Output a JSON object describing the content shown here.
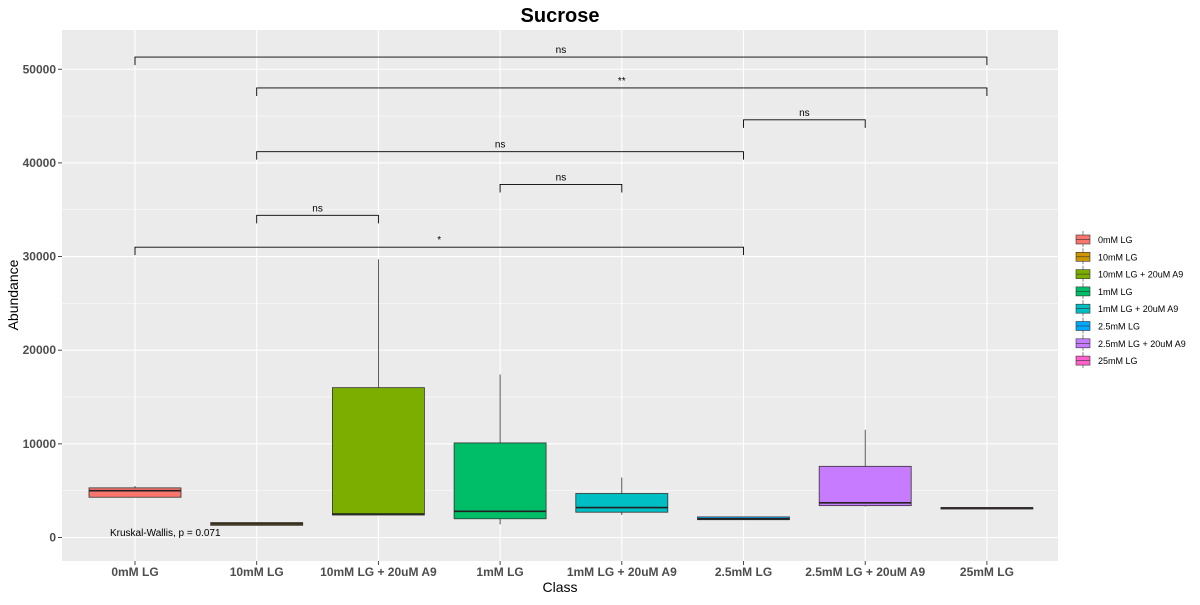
{
  "chart_data": {
    "type": "box",
    "title": "Sucrose",
    "xlabel": "Class",
    "ylabel": "Abundance",
    "ylim": [
      -2500,
      54500
    ],
    "yticks": [
      0,
      10000,
      20000,
      30000,
      40000,
      50000
    ],
    "ytick_labels": [
      "0",
      "10000",
      "20000",
      "30000",
      "40000",
      "50000"
    ],
    "grid": true,
    "legend_position": "right",
    "categories": [
      "0mM LG",
      "10mM LG",
      "10mM LG + 20uM A9",
      "1mM LG",
      "1mM LG + 20uM A9",
      "2.5mM LG",
      "2.5mM LG + 20uM A9",
      "25mM LG"
    ],
    "colors": [
      "#F8766D",
      "#CD9600",
      "#7CAE00",
      "#00BE67",
      "#00BFC4",
      "#00A9FF",
      "#C77CFF",
      "#FF61CC"
    ],
    "boxes": [
      {
        "q1": 4300,
        "median": 5000,
        "q3": 5300,
        "whisker_low": 4300,
        "whisker_high": 5500
      },
      {
        "q1": 1300,
        "median": 1450,
        "q3": 1600,
        "whisker_low": 1300,
        "whisker_high": 1600
      },
      {
        "q1": 2400,
        "median": 2500,
        "q3": 16000,
        "whisker_low": 2400,
        "whisker_high": 29700
      },
      {
        "q1": 2000,
        "median": 2800,
        "q3": 10100,
        "whisker_low": 1400,
        "whisker_high": 17400
      },
      {
        "q1": 2700,
        "median": 3200,
        "q3": 4700,
        "whisker_low": 2400,
        "whisker_high": 6400
      },
      {
        "q1": 1900,
        "median": 2000,
        "q3": 2200,
        "whisker_low": 1900,
        "whisker_high": 2200
      },
      {
        "q1": 3400,
        "median": 3700,
        "q3": 7600,
        "whisker_low": 3300,
        "whisker_high": 11500
      },
      {
        "q1": 3100,
        "median": 3150,
        "q3": 3200,
        "whisker_low": 3100,
        "whisker_high": 3200
      }
    ],
    "comparisons": [
      {
        "from": 0,
        "to": 7,
        "y": 51300,
        "label": "ns"
      },
      {
        "from": 1,
        "to": 7,
        "y": 48000,
        "label": "**"
      },
      {
        "from": 5,
        "to": 6,
        "y": 44600,
        "label": "ns"
      },
      {
        "from": 1,
        "to": 5,
        "y": 41200,
        "label": "ns"
      },
      {
        "from": 3,
        "to": 4,
        "y": 37700,
        "label": "ns"
      },
      {
        "from": 1,
        "to": 2,
        "y": 34400,
        "label": "ns"
      },
      {
        "from": 0,
        "to": 5,
        "y": 31000,
        "label": "*"
      }
    ],
    "annotation": "Kruskal-Wallis, p = 0.071"
  }
}
